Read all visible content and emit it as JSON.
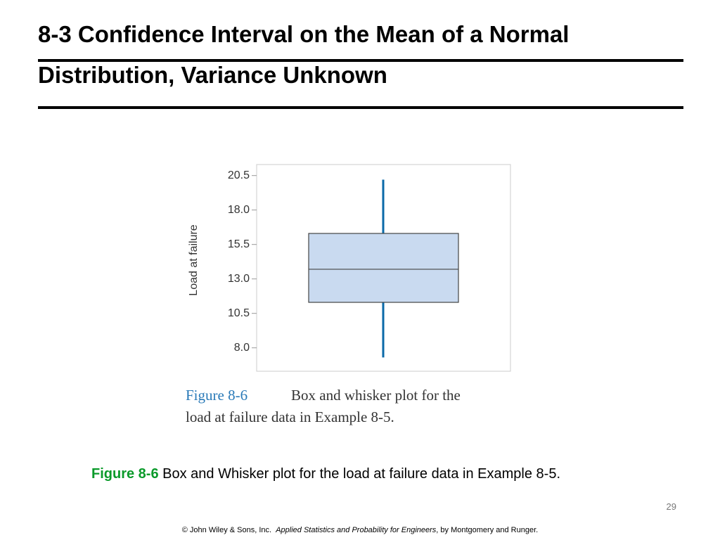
{
  "slide": {
    "title_lines": [
      "8-3 Confidence Interval on the Mean of a Normal",
      "Distribution, Variance Unknown"
    ],
    "caption_label": "Figure 8-6",
    "caption_text": "Box and Whisker plot for the load at failure data in Example 8-5.",
    "page_number": "29",
    "footer": [
      "© John Wiley & Sons, Inc.",
      "Applied Statistics and Probability for Engineers",
      ", by Montgomery and Runger."
    ]
  },
  "chart_data": {
    "type": "box",
    "y_label": "Load at failure",
    "figure_label": "Figure 8-6",
    "figure_caption_lines": [
      "Box and whisker plot for the",
      "load at failure data in Example 8-5."
    ],
    "box": {
      "whisker_low": 7.3,
      "q1": 11.3,
      "median": 13.7,
      "q3": 16.3,
      "whisker_high": 20.2
    },
    "box_color": "#c9daf0",
    "whisker_color": "#0a6aa8",
    "ylim": [
      6.3,
      21.3
    ],
    "yticks": [
      {
        "value": 8,
        "label": "8.0"
      },
      10.5,
      {
        "value": 13,
        "label": "13.0"
      },
      15.5,
      {
        "value": 18,
        "label": "18.0"
      },
      20.5
    ]
  }
}
